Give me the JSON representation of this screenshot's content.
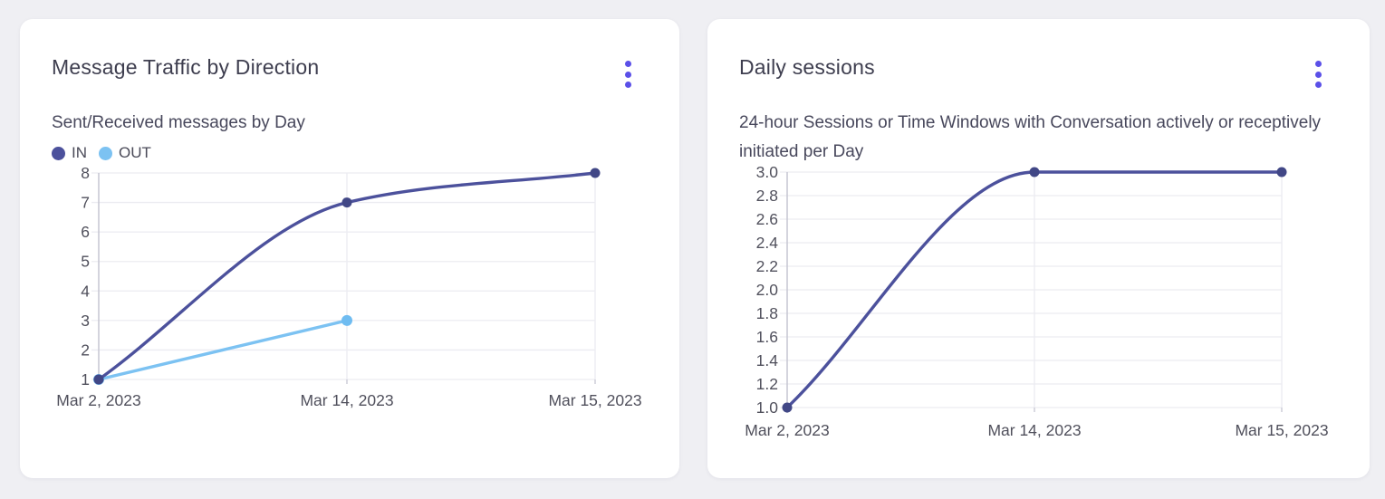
{
  "page": {
    "background_color": "#efeff3"
  },
  "cards": [
    {
      "title": "Message Traffic by Direction",
      "subtitle": "Sent/Received messages by Day",
      "menu_icon": "kebab-menu-icon"
    },
    {
      "title": "Daily sessions",
      "subtitle": "24-hour Sessions or Time Windows with Conversation actively or receptively initiated per Day",
      "menu_icon": "kebab-menu-icon"
    }
  ],
  "colors": {
    "accent": "#5b50e8",
    "grid": "#ececf1",
    "axis": "#c6c6d2",
    "tick_text": "#50505c",
    "series_in": "#4c519c",
    "series_in_point": "#414786",
    "series_out": "#7cc2f2",
    "series_out_point": "#6fbcf1"
  },
  "chart_data": [
    {
      "type": "line",
      "title": "Message Traffic by Direction",
      "subtitle": "Sent/Received messages by Day",
      "x": [
        "Mar 2, 2023",
        "Mar 14, 2023",
        "Mar 15, 2023"
      ],
      "series": [
        {
          "name": "IN",
          "values": [
            1,
            7,
            8
          ],
          "color": "#4c519c",
          "point_color": "#414786"
        },
        {
          "name": "OUT",
          "values": [
            1,
            3,
            null
          ],
          "color": "#7cc2f2",
          "point_color": "#6fbcf1"
        }
      ],
      "ylim": [
        1,
        8
      ],
      "yticks": [
        1,
        2,
        3,
        4,
        5,
        6,
        7,
        8
      ],
      "ytick_decimals": 0,
      "grid": true,
      "legend_position": "top-left",
      "curve": "monotone"
    },
    {
      "type": "line",
      "title": "Daily sessions",
      "subtitle": "24-hour Sessions or Time Windows with Conversation actively or receptively initiated per Day",
      "x": [
        "Mar 2, 2023",
        "Mar 14, 2023",
        "Mar 15, 2023"
      ],
      "series": [
        {
          "name": "Daily sessions",
          "values": [
            1.0,
            3.0,
            3.0
          ],
          "color": "#4c519c",
          "point_color": "#414786"
        }
      ],
      "ylim": [
        1.0,
        3.0
      ],
      "yticks": [
        1.0,
        1.2,
        1.4,
        1.6,
        1.8,
        2.0,
        2.2,
        2.4,
        2.6,
        2.8,
        3.0
      ],
      "ytick_decimals": 1,
      "grid": true,
      "legend_position": "none",
      "curve": "monotone"
    }
  ]
}
